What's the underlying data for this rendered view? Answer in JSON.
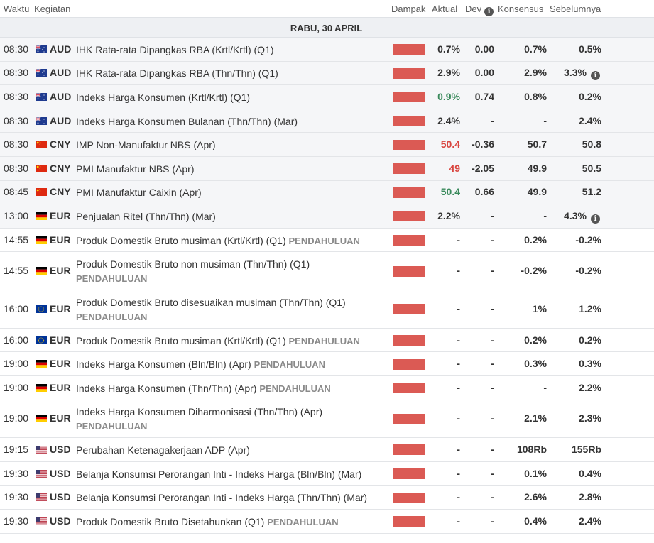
{
  "header": {
    "time": "Waktu",
    "event": "Kegiatan",
    "impact": "Dampak",
    "actual": "Aktual",
    "dev": "Dev",
    "consensus": "Konsensus",
    "previous": "Sebelumnya"
  },
  "day": "RABU, 30 APRIL",
  "prelim_label": "PENDAHULUAN",
  "colors": {
    "impact_bar": "#db5a54",
    "better": "#3a8a5c",
    "worse": "#d9453f"
  },
  "rows": [
    {
      "time": "08:30",
      "flag": "au-flag-icon",
      "cur": "AUD",
      "event": "IHK Rata-rata Dipangkas RBA (Krtl/Krtl) (Q1)",
      "prelim": false,
      "actual": "0.7%",
      "actual_tone": "",
      "dev": "0.00",
      "cons": "0.7%",
      "prev": "0.5%",
      "prev_info": false,
      "released": true
    },
    {
      "time": "08:30",
      "flag": "au-flag-icon",
      "cur": "AUD",
      "event": "IHK Rata-rata Dipangkas RBA (Thn/Thn) (Q1)",
      "prelim": false,
      "actual": "2.9%",
      "actual_tone": "",
      "dev": "0.00",
      "cons": "2.9%",
      "prev": "3.3%",
      "prev_info": true,
      "released": true
    },
    {
      "time": "08:30",
      "flag": "au-flag-icon",
      "cur": "AUD",
      "event": "Indeks Harga Konsumen (Krtl/Krtl) (Q1)",
      "prelim": false,
      "actual": "0.9%",
      "actual_tone": "up",
      "dev": "0.74",
      "cons": "0.8%",
      "prev": "0.2%",
      "prev_info": false,
      "released": true
    },
    {
      "time": "08:30",
      "flag": "au-flag-icon",
      "cur": "AUD",
      "event": "Indeks Harga Konsumen Bulanan (Thn/Thn) (Mar)",
      "prelim": false,
      "actual": "2.4%",
      "actual_tone": "",
      "dev": "-",
      "cons": "-",
      "prev": "2.4%",
      "prev_info": false,
      "released": true
    },
    {
      "time": "08:30",
      "flag": "cn-flag-icon",
      "cur": "CNY",
      "event": "IMP Non-Manufaktur NBS (Apr)",
      "prelim": false,
      "actual": "50.4",
      "actual_tone": "down",
      "dev": "-0.36",
      "cons": "50.7",
      "prev": "50.8",
      "prev_info": false,
      "released": true
    },
    {
      "time": "08:30",
      "flag": "cn-flag-icon",
      "cur": "CNY",
      "event": "PMI Manufaktur NBS (Apr)",
      "prelim": false,
      "actual": "49",
      "actual_tone": "down",
      "dev": "-2.05",
      "cons": "49.9",
      "prev": "50.5",
      "prev_info": false,
      "released": true
    },
    {
      "time": "08:45",
      "flag": "cn-flag-icon",
      "cur": "CNY",
      "event": "PMI Manufaktur Caixin (Apr)",
      "prelim": false,
      "actual": "50.4",
      "actual_tone": "up",
      "dev": "0.66",
      "cons": "49.9",
      "prev": "51.2",
      "prev_info": false,
      "released": true
    },
    {
      "time": "13:00",
      "flag": "de-flag-icon",
      "cur": "EUR",
      "event": "Penjualan Ritel (Thn/Thn) (Mar)",
      "prelim": false,
      "actual": "2.2%",
      "actual_tone": "",
      "dev": "-",
      "cons": "-",
      "prev": "4.3%",
      "prev_info": true,
      "released": true
    },
    {
      "time": "14:55",
      "flag": "de-flag-icon",
      "cur": "EUR",
      "event": "Produk Domestik Bruto musiman (Krtl/Krtl) (Q1)",
      "prelim": true,
      "actual": "-",
      "actual_tone": "",
      "dev": "-",
      "cons": "0.2%",
      "prev": "-0.2%",
      "prev_info": false,
      "released": false
    },
    {
      "time": "14:55",
      "flag": "de-flag-icon",
      "cur": "EUR",
      "event": "Produk Domestik Bruto non musiman (Thn/Thn) (Q1)",
      "prelim": true,
      "actual": "-",
      "actual_tone": "",
      "dev": "-",
      "cons": "-0.2%",
      "prev": "-0.2%",
      "prev_info": false,
      "released": false
    },
    {
      "time": "16:00",
      "flag": "eu-flag-icon",
      "cur": "EUR",
      "event": "Produk Domestik Bruto disesuaikan musiman (Thn/Thn) (Q1)",
      "prelim": true,
      "actual": "-",
      "actual_tone": "",
      "dev": "-",
      "cons": "1%",
      "prev": "1.2%",
      "prev_info": false,
      "released": false
    },
    {
      "time": "16:00",
      "flag": "eu-flag-icon",
      "cur": "EUR",
      "event": "Produk Domestik Bruto musiman (Krtl/Krtl) (Q1)",
      "prelim": true,
      "actual": "-",
      "actual_tone": "",
      "dev": "-",
      "cons": "0.2%",
      "prev": "0.2%",
      "prev_info": false,
      "released": false
    },
    {
      "time": "19:00",
      "flag": "de-flag-icon",
      "cur": "EUR",
      "event": "Indeks Harga Konsumen (Bln/Bln) (Apr)",
      "prelim": true,
      "actual": "-",
      "actual_tone": "",
      "dev": "-",
      "cons": "0.3%",
      "prev": "0.3%",
      "prev_info": false,
      "released": false
    },
    {
      "time": "19:00",
      "flag": "de-flag-icon",
      "cur": "EUR",
      "event": "Indeks Harga Konsumen (Thn/Thn) (Apr)",
      "prelim": true,
      "actual": "-",
      "actual_tone": "",
      "dev": "-",
      "cons": "-",
      "prev": "2.2%",
      "prev_info": false,
      "released": false
    },
    {
      "time": "19:00",
      "flag": "de-flag-icon",
      "cur": "EUR",
      "event": "Indeks Harga Konsumen Diharmonisasi (Thn/Thn) (Apr)",
      "prelim": true,
      "actual": "-",
      "actual_tone": "",
      "dev": "-",
      "cons": "2.1%",
      "prev": "2.3%",
      "prev_info": false,
      "released": false
    },
    {
      "time": "19:15",
      "flag": "us-flag-icon",
      "cur": "USD",
      "event": "Perubahan Ketenagakerjaan ADP (Apr)",
      "prelim": false,
      "actual": "-",
      "actual_tone": "",
      "dev": "-",
      "cons": "108Rb",
      "prev": "155Rb",
      "prev_info": false,
      "released": false
    },
    {
      "time": "19:30",
      "flag": "us-flag-icon",
      "cur": "USD",
      "event": "Belanja Konsumsi Perorangan Inti - Indeks Harga (Bln/Bln) (Mar)",
      "prelim": false,
      "actual": "-",
      "actual_tone": "",
      "dev": "-",
      "cons": "0.1%",
      "prev": "0.4%",
      "prev_info": false,
      "released": false
    },
    {
      "time": "19:30",
      "flag": "us-flag-icon",
      "cur": "USD",
      "event": "Belanja Konsumsi Perorangan Inti - Indeks Harga (Thn/Thn) (Mar)",
      "prelim": false,
      "actual": "-",
      "actual_tone": "",
      "dev": "-",
      "cons": "2.6%",
      "prev": "2.8%",
      "prev_info": false,
      "released": false
    },
    {
      "time": "19:30",
      "flag": "us-flag-icon",
      "cur": "USD",
      "event": "Produk Domestik Bruto Disetahunkan (Q1)",
      "prelim": true,
      "actual": "-",
      "actual_tone": "",
      "dev": "-",
      "cons": "0.4%",
      "prev": "2.4%",
      "prev_info": false,
      "released": false
    }
  ]
}
